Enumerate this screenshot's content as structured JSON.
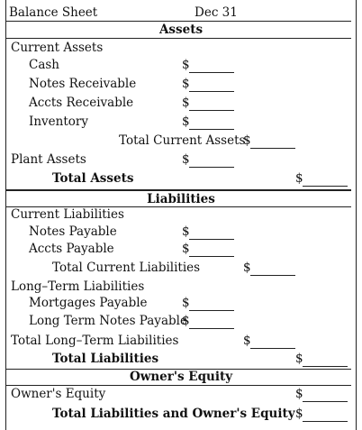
{
  "header": {
    "title": "Balance Sheet",
    "date": "Dec 31"
  },
  "assets": {
    "heading": "Assets",
    "current_label": "Current Assets",
    "items": [
      "Cash",
      "Notes Receivable",
      "Accts Receivable",
      "Inventory"
    ],
    "total_current": "Total Current Assets",
    "plant": "Plant Assets",
    "total": "Total Assets"
  },
  "liabilities": {
    "heading": "Liabilities",
    "current_label": "Current Liabilities",
    "current_items": [
      "Notes Payable",
      "Accts Payable"
    ],
    "total_current": "Total Current Liabilities",
    "longterm_label": "Long–Term Liabilities",
    "longterm_items": [
      "Mortgages Payable",
      "Long Term Notes Payable"
    ],
    "total_longterm": "Total Long–Term Liabilities",
    "total": "Total Liabilities"
  },
  "equity": {
    "heading": "Owner's Equity",
    "owners_equity": "Owner's Equity",
    "total": "Total Liabilities and Owner's Equity"
  },
  "symbols": {
    "dollar": "$"
  }
}
